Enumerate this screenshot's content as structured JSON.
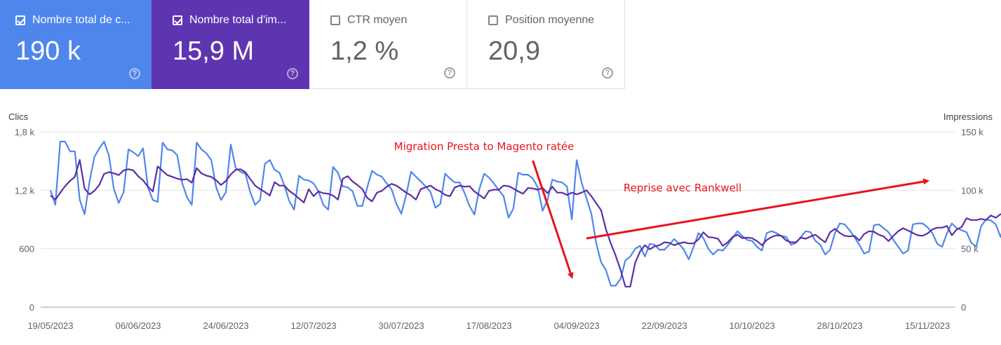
{
  "metrics": [
    {
      "label": "Nombre total de c...",
      "value": "190 k",
      "checked": true,
      "color": "#4f86ec"
    },
    {
      "label": "Nombre total d'im...",
      "value": "15,9 M",
      "checked": true,
      "color": "#5e35b1"
    },
    {
      "label": "CTR moyen",
      "value": "1,2 %",
      "checked": false
    },
    {
      "label": "Position moyenne",
      "value": "20,9",
      "checked": false
    }
  ],
  "help_glyph": "?",
  "chart_data": {
    "type": "line",
    "left_axis_title": "Clics",
    "right_axis_title": "Impressions",
    "left_ticks": [
      "0",
      "600",
      "1,2 k",
      "1,8 k"
    ],
    "right_ticks": [
      "0",
      "50 k",
      "100 k",
      "150 k"
    ],
    "left_range": [
      0,
      1800
    ],
    "right_range": [
      0,
      150000
    ],
    "x_labels": [
      "19/05/2023",
      "06/06/2023",
      "24/06/2023",
      "12/07/2023",
      "30/07/2023",
      "17/08/2023",
      "04/09/2023",
      "22/09/2023",
      "10/10/2023",
      "28/10/2023",
      "15/11/2023"
    ],
    "x_range": [
      "2023-05-19",
      "2023-11-19"
    ],
    "annotations": [
      {
        "text": "Migration Presta to Magento ratée"
      },
      {
        "text": "Reprise avec Rankwell"
      }
    ],
    "series": [
      {
        "axis": "left",
        "color": "#4f86ec",
        "start_date": "2023-05-19",
        "step_days": 1,
        "values": [
          1200,
          1050,
          1700,
          1700,
          1600,
          1600,
          1100,
          955,
          1290,
          1540,
          1630,
          1700,
          1555,
          1215,
          1070,
          1180,
          1620,
          1590,
          1550,
          1630,
          1230,
          1100,
          1080,
          1690,
          1620,
          1610,
          1560,
          1280,
          1130,
          1050,
          1690,
          1620,
          1580,
          1510,
          1230,
          1100,
          1180,
          1670,
          1430,
          1390,
          1370,
          1180,
          1050,
          1100,
          1470,
          1510,
          1410,
          1380,
          1250,
          1090,
          1000,
          1350,
          1310,
          1300,
          1270,
          1190,
          1050,
          1000,
          1440,
          1380,
          1240,
          1230,
          1190,
          1040,
          1040,
          1230,
          1400,
          1360,
          1340,
          1270,
          1210,
          1060,
          960,
          1150,
          1390,
          1340,
          1290,
          1240,
          1180,
          1020,
          1060,
          1370,
          1320,
          1280,
          1280,
          1170,
          1040,
          950,
          1210,
          1370,
          1330,
          1270,
          1200,
          1140,
          920,
          1010,
          1380,
          1360,
          1360,
          1320,
          1230,
          990,
          1100,
          1310,
          1290,
          1280,
          1240,
          900,
          1510,
          1280,
          1120,
          960,
          660,
          460,
          380,
          220,
          220,
          290,
          480,
          520,
          600,
          630,
          520,
          650,
          640,
          590,
          590,
          640,
          700,
          650,
          590,
          490,
          620,
          760,
          710,
          600,
          540,
          590,
          580,
          640,
          710,
          780,
          730,
          690,
          680,
          620,
          580,
          760,
          780,
          760,
          730,
          720,
          640,
          660,
          720,
          780,
          770,
          680,
          640,
          540,
          590,
          760,
          860,
          850,
          790,
          720,
          640,
          550,
          570,
          840,
          850,
          810,
          770,
          690,
          620,
          550,
          580,
          850,
          860,
          860,
          820,
          760,
          650,
          620,
          760,
          860,
          810,
          790,
          770,
          660,
          620,
          830,
          900,
          890,
          850,
          720,
          880,
          960,
          1080,
          1040,
          960,
          1020,
          1250,
          1060,
          960,
          1080,
          830
        ],
        "value_scale": 1
      },
      {
        "axis": "right",
        "color": "#5a2fa8",
        "start_date": "2023-05-19",
        "step_days": 1,
        "values": [
          95500,
          92000,
          98000,
          103500,
          108000,
          111500,
          126000,
          101500,
          96500,
          99500,
          104500,
          114000,
          115500,
          114500,
          113000,
          117000,
          118000,
          117000,
          112000,
          108500,
          103000,
          99000,
          120500,
          116500,
          113000,
          111500,
          110000,
          109000,
          109500,
          106500,
          119000,
          114500,
          112500,
          111500,
          108500,
          104500,
          108000,
          113500,
          117500,
          118000,
          115500,
          109500,
          104000,
          101000,
          98500,
          95500,
          107000,
          104000,
          104000,
          99500,
          96500,
          93000,
          89500,
          101000,
          95000,
          99000,
          97500,
          97000,
          95500,
          92000,
          110000,
          112000,
          107500,
          104500,
          101000,
          93500,
          90500,
          98000,
          99500,
          103000,
          105500,
          104000,
          101000,
          98000,
          95500,
          92000,
          101000,
          102500,
          104000,
          101000,
          99000,
          96000,
          95000,
          102500,
          104000,
          103000,
          103500,
          99000,
          96000,
          93000,
          99500,
          100500,
          100500,
          104000,
          103500,
          101500,
          99000,
          97000,
          102000,
          101500,
          100500,
          102000,
          97500,
          103000,
          98000,
          98000,
          96000,
          98000,
          96500,
          98000,
          100000,
          95000,
          89000,
          83000,
          66500,
          54500,
          44000,
          32000,
          17500,
          17500,
          38000,
          47500,
          53000,
          49500,
          52000,
          53000,
          55500,
          55000,
          53000,
          54500,
          55500,
          54500,
          54500,
          58000,
          64000,
          60000,
          59500,
          58500,
          52500,
          55500,
          60000,
          62000,
          59000,
          59500,
          59000,
          56500,
          53000,
          57500,
          60000,
          61500,
          61000,
          57000,
          55500,
          55500,
          59500,
          58500,
          60500,
          62000,
          58500,
          55500,
          64000,
          67000,
          63500,
          61000,
          60500,
          61000,
          57000,
          62500,
          65000,
          64500,
          62000,
          60500,
          56500,
          61000,
          65000,
          67500,
          65500,
          63500,
          61500,
          61000,
          63000,
          66500,
          68000,
          68000,
          69500,
          61500,
          66500,
          68500,
          76000,
          74500,
          74500,
          75500,
          74500,
          78500,
          76500,
          79500,
          80000,
          76000,
          72500,
          74000,
          80000,
          85000,
          84500,
          80500,
          78500,
          84000,
          81000,
          80000,
          72000
        ],
        "value_scale": 1
      }
    ]
  }
}
